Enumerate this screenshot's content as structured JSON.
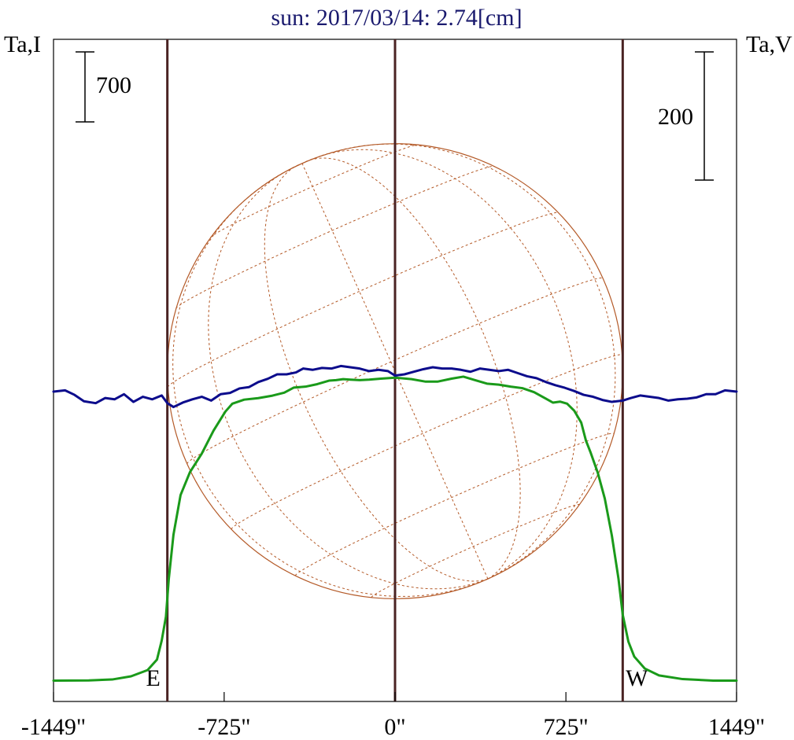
{
  "chart_data": {
    "type": "line",
    "title": "sun: 2017/03/14: 2.74[cm]",
    "left_axis_label": "Ta,I",
    "right_axis_label": "Ta,V",
    "scale_bar_left": {
      "label": "700",
      "value": 700
    },
    "scale_bar_right": {
      "label": "200",
      "value": 200
    },
    "x_ticks": [
      {
        "label": "-1449\"",
        "value": -1449
      },
      {
        "label": "-725\"",
        "value": -725
      },
      {
        "label": "0\"",
        "value": 0
      },
      {
        "label": "725\"",
        "value": 725
      },
      {
        "label": "1449\"",
        "value": 1449
      }
    ],
    "xlim": [
      -1449,
      1449
    ],
    "vertical_lines": [
      {
        "x": -966,
        "label": "E"
      },
      {
        "x": 0,
        "label": ""
      },
      {
        "x": 966,
        "label": "W"
      }
    ],
    "solar_disk": {
      "center_x": 0,
      "radius": 966
    },
    "series": [
      {
        "name": "Ta,I",
        "color": "#1a9a1a",
        "points": [
          [
            -1449,
            20
          ],
          [
            -1300,
            22
          ],
          [
            -1200,
            31
          ],
          [
            -1120,
            63
          ],
          [
            -1050,
            125
          ],
          [
            -1010,
            230
          ],
          [
            -990,
            420
          ],
          [
            -972,
            660
          ],
          [
            -960,
            1035
          ],
          [
            -940,
            1480
          ],
          [
            -910,
            1875
          ],
          [
            -870,
            2105
          ],
          [
            -820,
            2290
          ],
          [
            -770,
            2520
          ],
          [
            -720,
            2710
          ],
          [
            -690,
            2790
          ],
          [
            -640,
            2830
          ],
          [
            -580,
            2845
          ],
          [
            -520,
            2870
          ],
          [
            -470,
            2900
          ],
          [
            -430,
            2950
          ],
          [
            -380,
            2960
          ],
          [
            -330,
            2985
          ],
          [
            -280,
            3020
          ],
          [
            -250,
            3025
          ],
          [
            -220,
            3035
          ],
          [
            -190,
            3030
          ],
          [
            -150,
            3025
          ],
          [
            -110,
            3030
          ],
          [
            -60,
            3040
          ],
          [
            0,
            3050
          ],
          [
            70,
            3035
          ],
          [
            130,
            3010
          ],
          [
            180,
            3010
          ],
          [
            240,
            3040
          ],
          [
            290,
            3060
          ],
          [
            340,
            3025
          ],
          [
            390,
            2990
          ],
          [
            440,
            2980
          ],
          [
            490,
            2960
          ],
          [
            540,
            2945
          ],
          [
            590,
            2905
          ],
          [
            640,
            2840
          ],
          [
            670,
            2800
          ],
          [
            700,
            2810
          ],
          [
            730,
            2790
          ],
          [
            760,
            2720
          ],
          [
            790,
            2600
          ],
          [
            810,
            2420
          ],
          [
            830,
            2300
          ],
          [
            860,
            2100
          ],
          [
            890,
            1840
          ],
          [
            920,
            1470
          ],
          [
            948,
            1040
          ],
          [
            966,
            680
          ],
          [
            990,
            410
          ],
          [
            1015,
            260
          ],
          [
            1060,
            140
          ],
          [
            1120,
            72
          ],
          [
            1220,
            35
          ],
          [
            1350,
            20
          ],
          [
            1449,
            20
          ]
        ]
      },
      {
        "name": "Ta,V",
        "color": "#0c0c8c",
        "points": [
          [
            -1449,
            0
          ],
          [
            -1400,
            2
          ],
          [
            -1360,
            -5
          ],
          [
            -1320,
            -15
          ],
          [
            -1270,
            -18
          ],
          [
            -1230,
            -10
          ],
          [
            -1190,
            -12
          ],
          [
            -1150,
            -4
          ],
          [
            -1110,
            -16
          ],
          [
            -1070,
            -8
          ],
          [
            -1030,
            -12
          ],
          [
            -990,
            -6
          ],
          [
            -966,
            -18
          ],
          [
            -940,
            -24
          ],
          [
            -900,
            -17
          ],
          [
            -860,
            -12
          ],
          [
            -820,
            -8
          ],
          [
            -780,
            -14
          ],
          [
            -740,
            -4
          ],
          [
            -700,
            -2
          ],
          [
            -660,
            5
          ],
          [
            -620,
            7
          ],
          [
            -580,
            15
          ],
          [
            -540,
            20
          ],
          [
            -500,
            27
          ],
          [
            -460,
            27
          ],
          [
            -420,
            30
          ],
          [
            -390,
            36
          ],
          [
            -350,
            34
          ],
          [
            -310,
            37
          ],
          [
            -270,
            36
          ],
          [
            -230,
            40
          ],
          [
            -190,
            38
          ],
          [
            -150,
            36
          ],
          [
            -110,
            32
          ],
          [
            -70,
            34
          ],
          [
            -30,
            32
          ],
          [
            0,
            25
          ],
          [
            40,
            27
          ],
          [
            80,
            31
          ],
          [
            120,
            35
          ],
          [
            160,
            38
          ],
          [
            200,
            36
          ],
          [
            240,
            36
          ],
          [
            280,
            34
          ],
          [
            320,
            31
          ],
          [
            360,
            36
          ],
          [
            400,
            34
          ],
          [
            440,
            32
          ],
          [
            480,
            34
          ],
          [
            520,
            29
          ],
          [
            560,
            24
          ],
          [
            600,
            21
          ],
          [
            640,
            15
          ],
          [
            680,
            10
          ],
          [
            720,
            6
          ],
          [
            760,
            1
          ],
          [
            800,
            -5
          ],
          [
            840,
            -8
          ],
          [
            880,
            -13
          ],
          [
            920,
            -16
          ],
          [
            966,
            -14
          ],
          [
            1000,
            -10
          ],
          [
            1040,
            -6
          ],
          [
            1080,
            -8
          ],
          [
            1120,
            -10
          ],
          [
            1160,
            -14
          ],
          [
            1200,
            -12
          ],
          [
            1240,
            -11
          ],
          [
            1280,
            -9
          ],
          [
            1320,
            -4
          ],
          [
            1360,
            -4
          ],
          [
            1400,
            2
          ],
          [
            1449,
            0
          ]
        ]
      }
    ],
    "left_axis_reference_value": 0,
    "right_axis_reference_value": 0,
    "colors": {
      "title": "#1a1a6e",
      "axis": "#000000",
      "grid": "#b45a28",
      "marker_lines": "#4a2323",
      "green": "#1a9a1a",
      "blue": "#0c0c8c"
    }
  }
}
